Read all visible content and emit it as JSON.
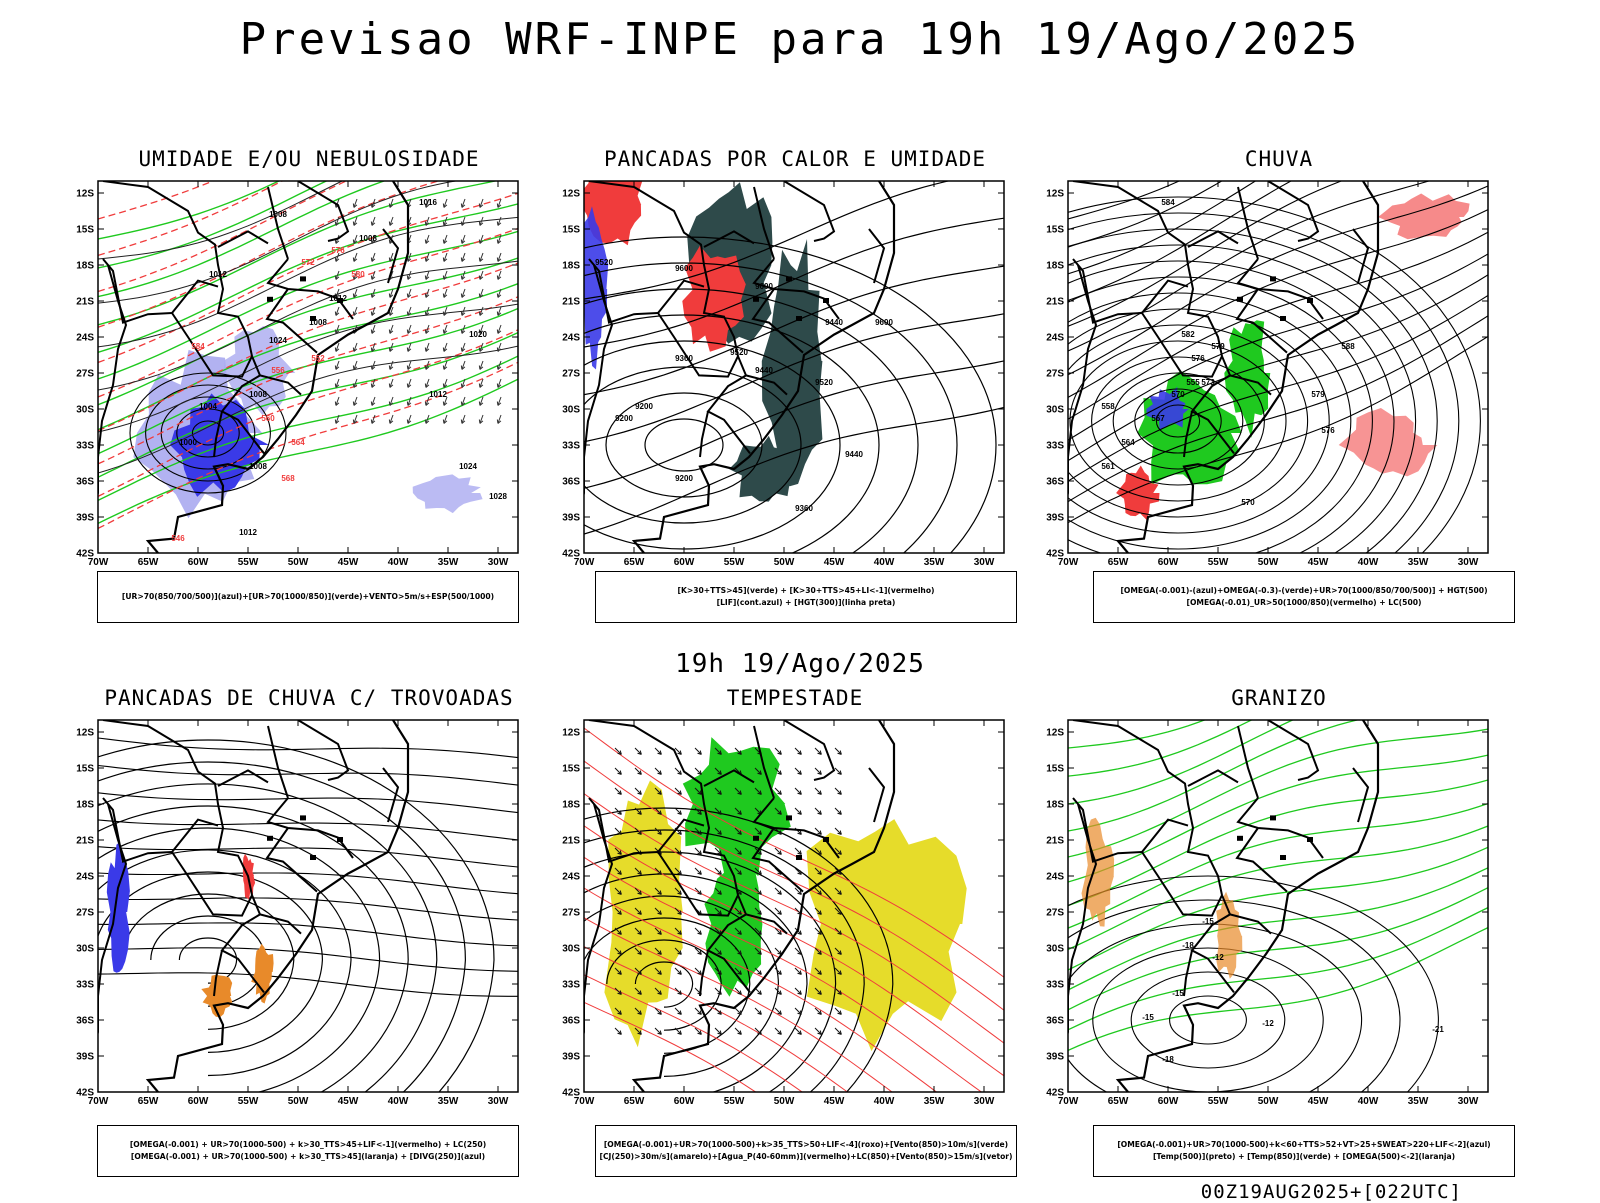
{
  "title": "Previsao WRF-INPE  para 19h 19/Ago/2025",
  "middle_label": "19h 19/Ago/2025",
  "footer": "00Z19AUG2025+[022UTC]",
  "axes": {
    "lat_ticks": [
      "12S",
      "15S",
      "18S",
      "21S",
      "24S",
      "27S",
      "30S",
      "33S",
      "36S",
      "39S",
      "42S"
    ],
    "lon_ticks": [
      "70W",
      "65W",
      "60W",
      "55W",
      "50W",
      "45W",
      "40W",
      "35W",
      "30W"
    ]
  },
  "colors": {
    "blue": "#3a3ae8",
    "lightblue": "#aaaaf0",
    "green": "#1fc91f",
    "red": "#f03c3c",
    "darkteal": "#2e4a4a",
    "yellow": "#e6dc2a",
    "orange": "#e88a2a"
  },
  "panels": [
    {
      "id": "umidade",
      "title": "UMIDADE E/OU NEBULOSIDADE",
      "legend": [
        "[UR>70(850/700/500)](azul)+[UR>70(1000/850)](verde)+VENTO>5m/s+ESP(500/1000)"
      ],
      "contour_labels": [
        "1008",
        "1008",
        "1012",
        "1008",
        "1012",
        "1016",
        "1020",
        "1024",
        "1008",
        "1004",
        "1008",
        "1012",
        "1024",
        "1028",
        "1000",
        "1012",
        "552",
        "556",
        "560",
        "564",
        "568",
        "572",
        "576",
        "580",
        "584",
        "546"
      ]
    },
    {
      "id": "pancadas-calor",
      "title": "PANCADAS POR CALOR E UMIDADE",
      "legend": [
        "[K>30+TTS>45](verde) + [K>30+TTS>45+LI<-1](vermelho)",
        "[LIF](cont.azul) + [HGT(300)](linha preta)"
      ],
      "contour_labels": [
        "9520",
        "9600",
        "9600",
        "9440",
        "9520",
        "9600",
        "9360",
        "9440",
        "9520",
        "9200",
        "9200",
        "9440",
        "9200",
        "9360"
      ]
    },
    {
      "id": "chuva",
      "title": "CHUVA",
      "legend": [
        "[OMEGA(-0.001)-(azul)+OMEGA(-0.3)-(verde)+UR>70(1000/850/700/500)] + HGT(500)",
        "[OMEGA(-0.01)_UR>50(1000/850)(vermelho) + LC(500)"
      ],
      "contour_labels": [
        "584",
        "582",
        "579",
        "576",
        "573",
        "570",
        "567",
        "564",
        "561",
        "558",
        "555",
        "588",
        "579",
        "576",
        "570"
      ]
    },
    {
      "id": "trovoadas",
      "title": "PANCADAS DE CHUVA C/ TROVOADAS",
      "legend": [
        "[OMEGA(-0.001) + UR>70(1000-500) + k>30_TTS>45+LIF<-1](vermelho) + LC(250)",
        "[OMEGA(-0.001) + UR>70(1000-500) + k>30_TTS>45](laranja) + [DIVG(250)](azul)"
      ],
      "contour_labels": []
    },
    {
      "id": "tempestade",
      "title": "TEMPESTADE",
      "legend": [
        "[OMEGA(-0.001)+UR>70(1000-500)+k>35_TTS>50+LIF<-4](roxo)+[Vento(850)>10m/s](verde)",
        "[CJ(250)>30m/s](amarelo)+[Agua_P(40-60mm)](vermelho)+LC(850)+[Vento(850)>15m/s](vetor)"
      ],
      "contour_labels": []
    },
    {
      "id": "granizo",
      "title": "GRANIZO",
      "legend": [
        "[OMEGA(-0.001)+UR>70(1000-500)+k<60+TTS>52+VT>25+SWEAT>220+LIF<-2](azul)",
        "[Temp(500)](preto) + [Temp(850)](verde) + [OMEGA(500)<-2](laranja)"
      ],
      "contour_labels": [
        "-18",
        "-15",
        "-12",
        "-21",
        "-15",
        "-18",
        "-12",
        "-15"
      ]
    }
  ]
}
